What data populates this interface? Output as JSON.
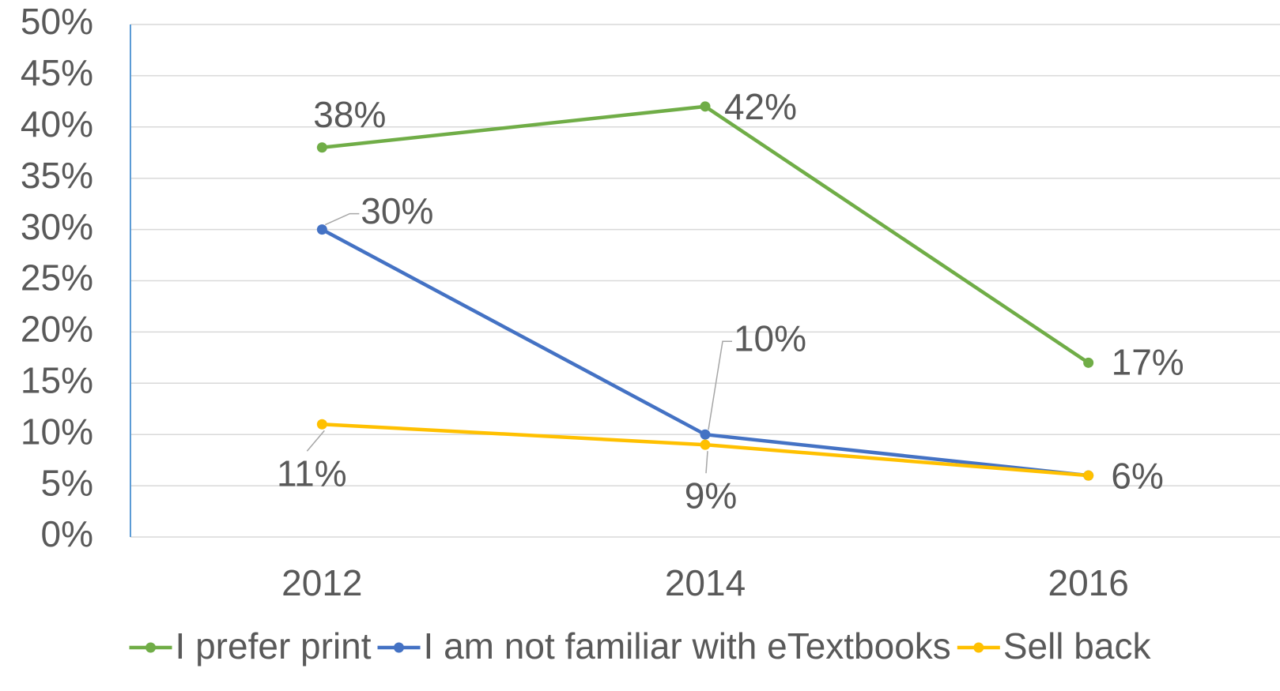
{
  "chart_data": {
    "type": "line",
    "categories": [
      "2012",
      "2014",
      "2016"
    ],
    "series": [
      {
        "name": "I prefer print",
        "color": "#70ad47",
        "values": [
          38,
          42,
          17
        ],
        "value_labels": [
          "38%",
          "42%",
          "17%"
        ]
      },
      {
        "name": "I am not familiar with eTextbooks",
        "color": "#4472c4",
        "values": [
          30,
          10,
          6
        ],
        "value_labels": [
          "30%",
          "10%",
          null
        ]
      },
      {
        "name": "Sell back",
        "color": "#ffc000",
        "values": [
          11,
          9,
          6
        ],
        "value_labels": [
          "11%",
          "9%",
          "6%"
        ]
      }
    ],
    "ylim": [
      0,
      50
    ],
    "yticks": [
      {
        "value": 0,
        "label": "0%"
      },
      {
        "value": 5,
        "label": "5%"
      },
      {
        "value": 10,
        "label": "10%"
      },
      {
        "value": 15,
        "label": "15%"
      },
      {
        "value": 20,
        "label": "20%"
      },
      {
        "value": 25,
        "label": "25%"
      },
      {
        "value": 30,
        "label": "30%"
      },
      {
        "value": 35,
        "label": "35%"
      },
      {
        "value": 40,
        "label": "40%"
      },
      {
        "value": 45,
        "label": "45%"
      },
      {
        "value": 50,
        "label": "50%"
      }
    ],
    "grid": true,
    "legend": "bottom"
  }
}
